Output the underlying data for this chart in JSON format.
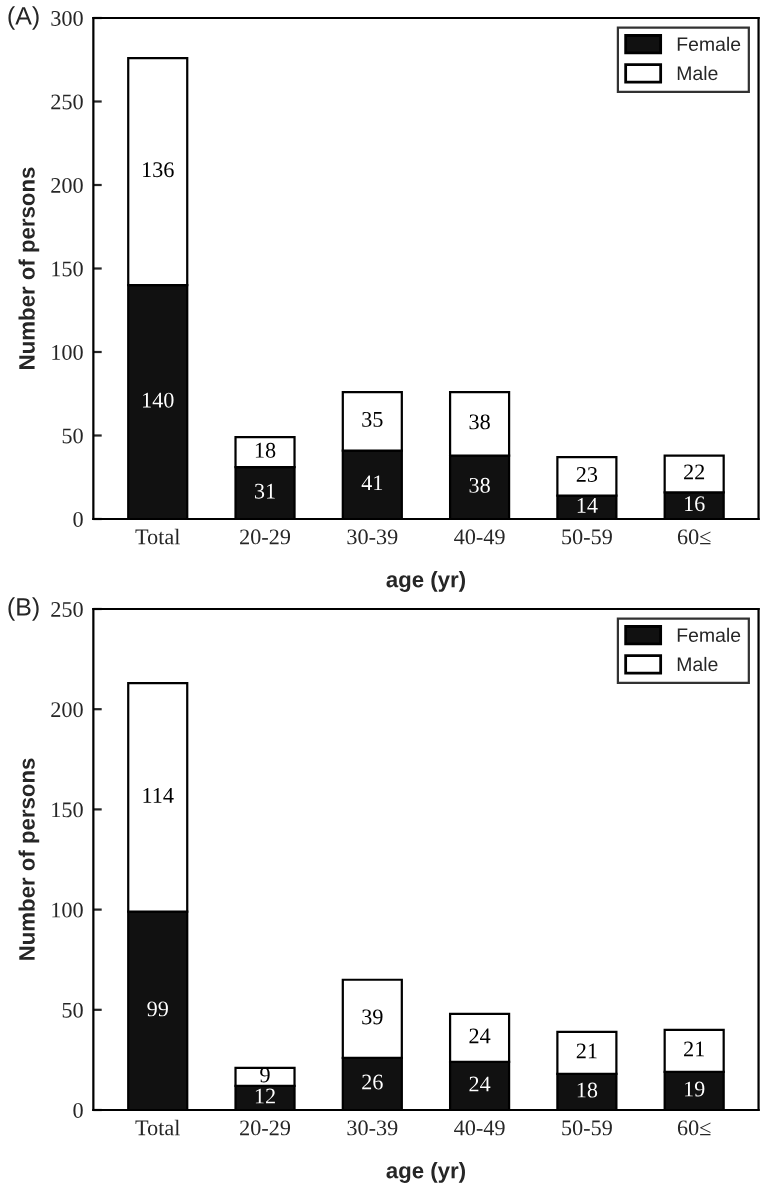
{
  "chart_data": [
    {
      "type": "bar",
      "stacked": true,
      "annotations": [
        "(A)"
      ],
      "xlabel": "age (yr)",
      "ylabel": "Number of persons",
      "categories": [
        "Total",
        "20-29",
        "30-39",
        "40-49",
        "50-59",
        "60≤"
      ],
      "series": [
        {
          "name": "Female",
          "color": "#111111",
          "values": [
            140,
            31,
            41,
            38,
            14,
            16
          ]
        },
        {
          "name": "Male",
          "color": "#ffffff",
          "values": [
            136,
            18,
            35,
            38,
            23,
            22
          ]
        }
      ],
      "ylim": [
        0,
        300
      ],
      "yticks": [
        0,
        50,
        100,
        150,
        200,
        250,
        300
      ],
      "data_labels": true,
      "legend": "top right",
      "grid": false
    },
    {
      "type": "bar",
      "stacked": true,
      "annotations": [
        "(B)"
      ],
      "xlabel": "age (yr)",
      "ylabel": "Number of persons",
      "categories": [
        "Total",
        "20-29",
        "30-39",
        "40-49",
        "50-59",
        "60≤"
      ],
      "series": [
        {
          "name": "Female",
          "color": "#111111",
          "values": [
            99,
            12,
            26,
            24,
            18,
            19
          ]
        },
        {
          "name": "Male",
          "color": "#ffffff",
          "values": [
            114,
            9,
            39,
            24,
            21,
            21
          ]
        }
      ],
      "ylim": [
        0,
        250
      ],
      "yticks": [
        0,
        50,
        100,
        150,
        200,
        250
      ],
      "data_labels": true,
      "legend": "top right",
      "grid": false
    }
  ]
}
